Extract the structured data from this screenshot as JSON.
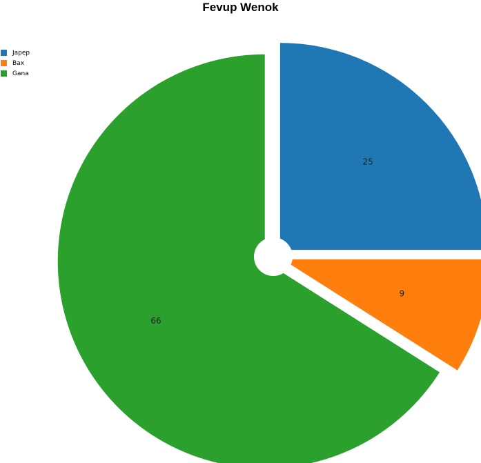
{
  "chart_data": {
    "type": "pie",
    "title": "Fevup Wenok",
    "categories": [
      "Japep",
      "Bax",
      "Gana"
    ],
    "values": [
      25,
      9,
      66
    ],
    "colors": [
      "#1f77b4",
      "#ff7f0e",
      "#2ca02c"
    ],
    "legend_position": "top-left",
    "exploded": true
  }
}
